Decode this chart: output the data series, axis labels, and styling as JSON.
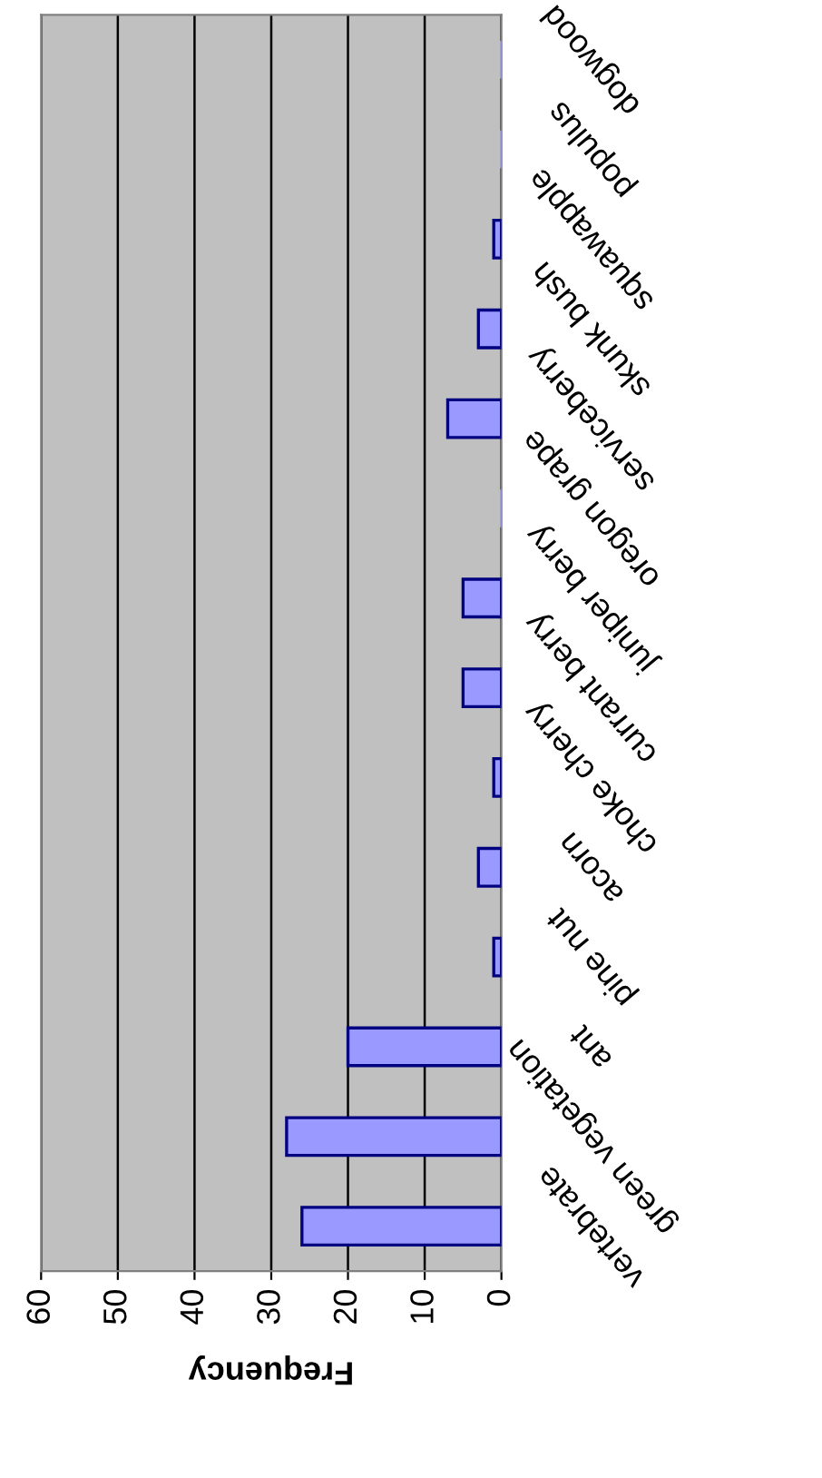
{
  "chart_data": {
    "type": "bar",
    "orientation": "horizontal",
    "xlabel": "Frequency",
    "categories": [
      "dogwood",
      "populus",
      "squawapple",
      "skunk bush",
      "serviceberry",
      "oregon grape",
      "juniper berry",
      "currant berry",
      "choke cherry",
      "acorn",
      "pine nut",
      "ant",
      "green vegetation",
      "vertebrate"
    ],
    "values": [
      0,
      0,
      1,
      3,
      7,
      0,
      5,
      5,
      1,
      3,
      1,
      20,
      28,
      26
    ],
    "color": "#9999ff",
    "xlim": [
      60,
      0
    ],
    "xticks": [
      60,
      50,
      40,
      30,
      20,
      10,
      0
    ],
    "grid": "x",
    "legend": false
  }
}
